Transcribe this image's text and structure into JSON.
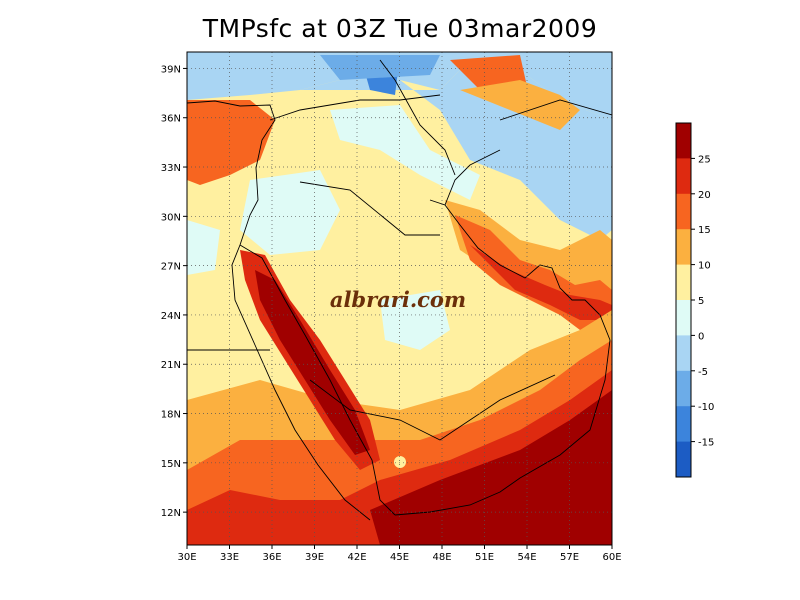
{
  "title": "TMPsfc at 03Z Tue 03mar2009",
  "watermark": "albrari.com",
  "map": {
    "lat_range": [
      10,
      40
    ],
    "lon_range": [
      30,
      60
    ],
    "lat_ticks": [
      "39N",
      "36N",
      "33N",
      "30N",
      "27N",
      "24N",
      "21N",
      "18N",
      "15N",
      "12N"
    ],
    "lon_ticks": [
      "30E",
      "33E",
      "36E",
      "39E",
      "42E",
      "45E",
      "48E",
      "51E",
      "54E",
      "57E",
      "60E"
    ]
  },
  "colorbar": {
    "labels": [
      "25",
      "20",
      "15",
      "10",
      "5",
      "0",
      "-5",
      "-10",
      "-15"
    ],
    "colors": [
      "#a00000",
      "#de2a10",
      "#f76520",
      "#fbb040",
      "#fff0a0",
      "#dffbf6",
      "#a9d5f3",
      "#6cace8",
      "#3c84dc",
      "#1c5cc4"
    ]
  }
}
